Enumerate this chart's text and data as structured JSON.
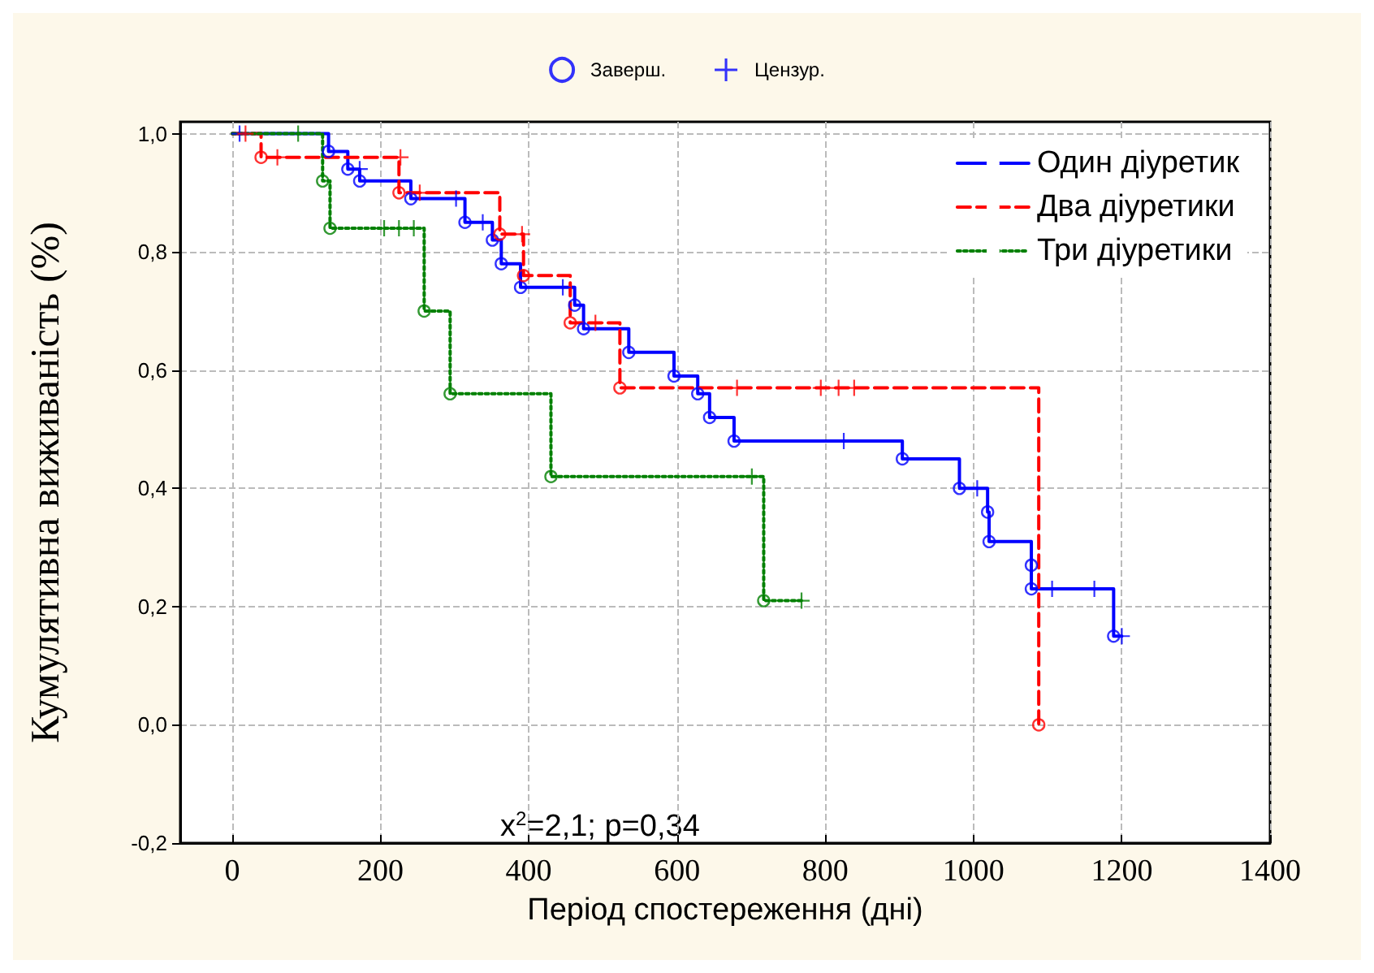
{
  "chart_data": {
    "type": "step",
    "xlabel": "Період спостереження (дні)",
    "ylabel": "Кумулятивна виживаність (%)",
    "xlim": [
      -70,
      1400
    ],
    "xticks": [
      0,
      200,
      400,
      600,
      800,
      1000,
      1200,
      1400
    ],
    "ylim": [
      -0.2,
      1.02
    ],
    "yticks": [
      {
        "value": -0.2,
        "label": "-0,2"
      },
      {
        "value": 0,
        "label": "0,0"
      },
      {
        "value": 0.2,
        "label": "0,2"
      },
      {
        "value": 0.4,
        "label": "0,4"
      },
      {
        "value": 0.6,
        "label": "0,6"
      },
      {
        "value": 0.8,
        "label": "0,8"
      },
      {
        "value": 1,
        "label": "1,0"
      }
    ],
    "grid": true,
    "legend": "top right",
    "annotations": [
      "x$^{2}$=2,1; p=0,34"
    ],
    "series": [
      {
        "name": "Один діуретик",
        "color": "#0000ff",
        "line_style": "solid",
        "marker": "none",
        "x": [
          0,
          130,
          156,
          172,
          241,
          314,
          351,
          363,
          389,
          462,
          474,
          535,
          596,
          628,
          644,
          677,
          904,
          981,
          1019,
          1021,
          1078,
          1078,
          1189,
          1200
        ],
        "values": [
          1,
          0.97,
          0.94,
          0.92,
          0.89,
          0.85,
          0.82,
          0.78,
          0.74,
          0.71,
          0.67,
          0.63,
          0.59,
          0.56,
          0.52,
          0.48,
          0.45,
          0.4,
          0.36,
          0.31,
          0.27,
          0.23,
          0.15,
          0.15
        ]
      },
      {
        "name": "Два діуретики",
        "color": "#ff0000",
        "line_style": "dashed",
        "marker": "none",
        "x": [
          0,
          39,
          225,
          361,
          393,
          456,
          523,
          1088
        ],
        "values": [
          1,
          0.96,
          0.9,
          0.83,
          0.76,
          0.68,
          0.57,
          0
        ]
      },
      {
        "name": "Три діуретики",
        "color": "#008000",
        "line_style": "dotted",
        "marker": "none",
        "x": [
          0,
          122,
          132,
          259,
          294,
          430,
          717,
          768
        ],
        "values": [
          1,
          0.92,
          0.84,
          0.7,
          0.56,
          0.42,
          0.21,
          0.21
        ]
      },
      {
        "name": "Заверш.",
        "type": "scatter",
        "marker": "circle",
        "x": [
          130,
          156,
          172,
          241,
          314,
          351,
          363,
          389,
          462,
          474,
          535,
          596,
          628,
          644,
          677,
          904,
          981,
          1019,
          1021,
          1078,
          1078,
          1189,
          39,
          225,
          361,
          393,
          456,
          523,
          1088,
          122,
          132,
          259,
          294,
          430,
          717
        ],
        "values": [
          0.97,
          0.94,
          0.92,
          0.89,
          0.85,
          0.82,
          0.78,
          0.74,
          0.71,
          0.67,
          0.63,
          0.59,
          0.56,
          0.52,
          0.48,
          0.45,
          0.4,
          0.36,
          0.31,
          0.27,
          0.23,
          0.15,
          0.96,
          0.9,
          0.83,
          0.76,
          0.68,
          0.57,
          0,
          0.92,
          0.84,
          0.7,
          0.56,
          0.42,
          0.21
        ],
        "colors": [
          "#0000ff",
          "#0000ff",
          "#0000ff",
          "#0000ff",
          "#0000ff",
          "#0000ff",
          "#0000ff",
          "#0000ff",
          "#0000ff",
          "#0000ff",
          "#0000ff",
          "#0000ff",
          "#0000ff",
          "#0000ff",
          "#0000ff",
          "#0000ff",
          "#0000ff",
          "#0000ff",
          "#0000ff",
          "#0000ff",
          "#0000ff",
          "#0000ff",
          "#ff0000",
          "#ff0000",
          "#ff0000",
          "#ff0000",
          "#ff0000",
          "#ff0000",
          "#ff0000",
          "#008000",
          "#008000",
          "#008000",
          "#008000",
          "#008000",
          "#008000"
        ]
      },
      {
        "name": "Цензур.",
        "type": "scatter",
        "marker": "cross",
        "x": [
          10,
          172,
          302,
          338,
          446,
          825,
          1005,
          1106,
          1163,
          1200,
          18,
          61,
          227,
          253,
          391,
          490,
          681,
          794,
          818,
          839,
          89,
          205,
          225,
          245,
          701,
          768
        ],
        "values": [
          1,
          0.94,
          0.89,
          0.85,
          0.74,
          0.48,
          0.4,
          0.23,
          0.23,
          0.15,
          1,
          0.96,
          0.96,
          0.9,
          0.83,
          0.68,
          0.57,
          0.57,
          0.57,
          0.57,
          1,
          0.84,
          0.84,
          0.84,
          0.42,
          0.21
        ],
        "colors": [
          "#0000ff",
          "#0000ff",
          "#0000ff",
          "#0000ff",
          "#0000ff",
          "#0000ff",
          "#0000ff",
          "#0000ff",
          "#0000ff",
          "#0000ff",
          "#ff0000",
          "#ff0000",
          "#ff0000",
          "#ff0000",
          "#ff0000",
          "#ff0000",
          "#ff0000",
          "#ff0000",
          "#ff0000",
          "#ff0000",
          "#008000",
          "#008000",
          "#008000",
          "#008000",
          "#008000",
          "#008000"
        ]
      }
    ]
  }
}
